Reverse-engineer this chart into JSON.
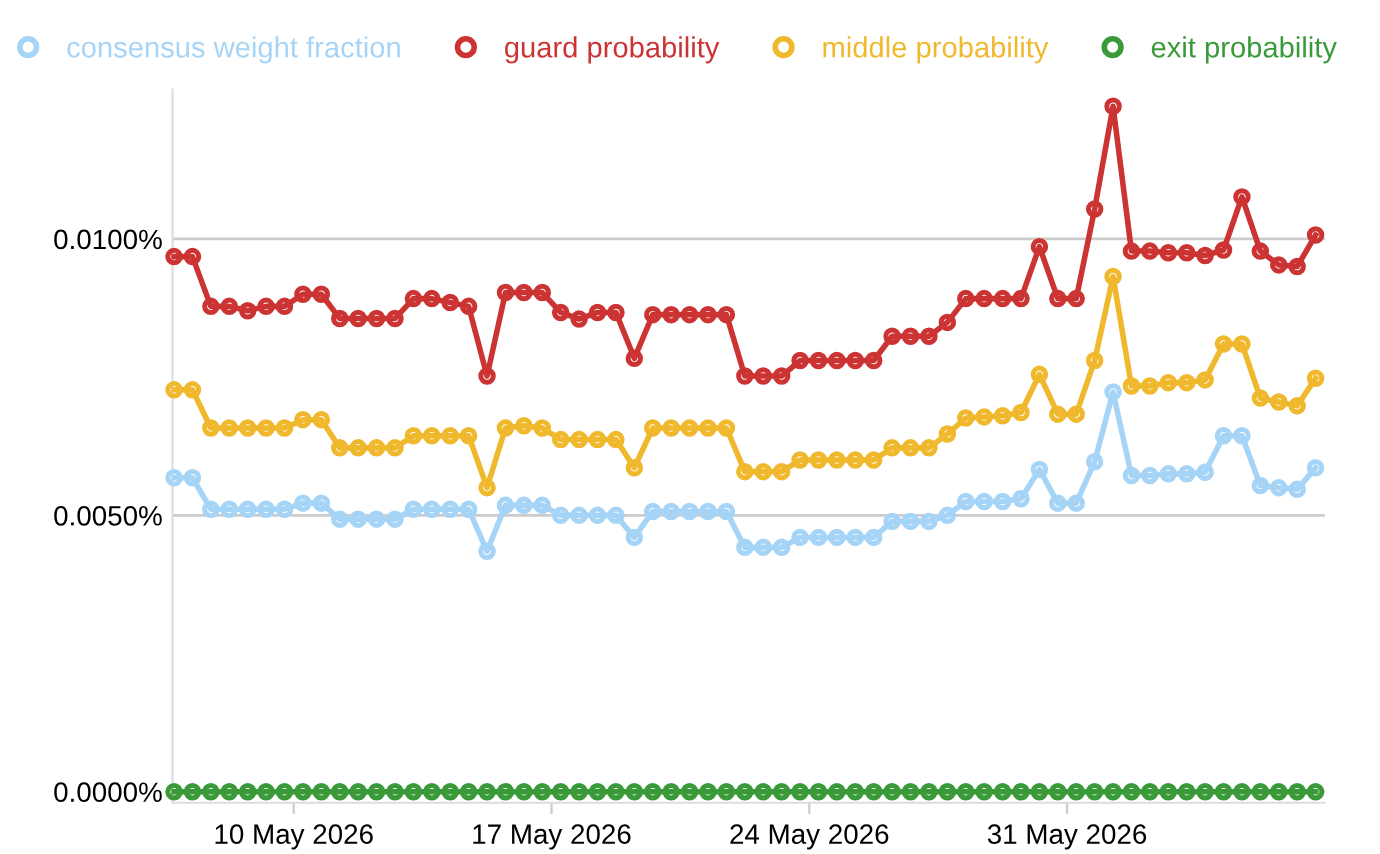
{
  "chart_data": {
    "type": "line",
    "marker": "circle",
    "line_style": "solid",
    "grid": "y",
    "legend": "top",
    "xlim": [
      "2026-05-06T17:00",
      "2026-06-07T00:00"
    ],
    "xticks": [
      {
        "value": "2026-05-10",
        "label": "10 May 2026"
      },
      {
        "value": "2026-05-17",
        "label": "17 May 2026"
      },
      {
        "value": "2026-05-24",
        "label": "24 May 2026"
      },
      {
        "value": "2026-05-31",
        "label": "31 May 2026"
      }
    ],
    "ylim": [
      -0.0002,
      0.0127
    ],
    "yticks": [
      {
        "value": 0,
        "label": "0.0000%"
      },
      {
        "value": 0.005,
        "label": "0.0050%"
      },
      {
        "value": 0.01,
        "label": "0.0100%"
      }
    ],
    "x": [
      "2026-05-06T18:00",
      "2026-05-07T06:00",
      "2026-05-07T18:00",
      "2026-05-08T06:00",
      "2026-05-08T18:00",
      "2026-05-09T06:00",
      "2026-05-09T18:00",
      "2026-05-10T06:00",
      "2026-05-10T18:00",
      "2026-05-11T06:00",
      "2026-05-11T18:00",
      "2026-05-12T06:00",
      "2026-05-12T18:00",
      "2026-05-13T06:00",
      "2026-05-13T18:00",
      "2026-05-14T06:00",
      "2026-05-14T18:00",
      "2026-05-15T06:00",
      "2026-05-15T18:00",
      "2026-05-16T06:00",
      "2026-05-16T18:00",
      "2026-05-17T06:00",
      "2026-05-17T18:00",
      "2026-05-18T06:00",
      "2026-05-18T18:00",
      "2026-05-19T06:00",
      "2026-05-19T18:00",
      "2026-05-20T06:00",
      "2026-05-20T18:00",
      "2026-05-21T06:00",
      "2026-05-21T18:00",
      "2026-05-22T06:00",
      "2026-05-22T18:00",
      "2026-05-23T06:00",
      "2026-05-23T18:00",
      "2026-05-24T06:00",
      "2026-05-24T18:00",
      "2026-05-25T06:00",
      "2026-05-25T18:00",
      "2026-05-26T06:00",
      "2026-05-26T18:00",
      "2026-05-27T06:00",
      "2026-05-27T18:00",
      "2026-05-28T06:00",
      "2026-05-28T18:00",
      "2026-05-29T06:00",
      "2026-05-29T18:00",
      "2026-05-30T06:00",
      "2026-05-30T18:00",
      "2026-05-31T06:00",
      "2026-05-31T18:00",
      "2026-06-01T06:00",
      "2026-06-01T18:00",
      "2026-06-02T06:00",
      "2026-06-02T18:00",
      "2026-06-03T06:00",
      "2026-06-03T18:00",
      "2026-06-04T06:00",
      "2026-06-04T18:00",
      "2026-06-05T06:00",
      "2026-06-05T18:00",
      "2026-06-06T06:00",
      "2026-06-06T18:00"
    ],
    "series": [
      {
        "name": "consensus weight fraction",
        "color": "#a6d4f7",
        "values": [
          0.00568,
          0.00568,
          0.00511,
          0.00511,
          0.00511,
          0.00511,
          0.00511,
          0.00522,
          0.00522,
          0.00493,
          0.00493,
          0.00493,
          0.00493,
          0.00511,
          0.00511,
          0.00511,
          0.00511,
          0.00435,
          0.00518,
          0.00518,
          0.00518,
          0.005,
          0.005,
          0.005,
          0.005,
          0.0046,
          0.00507,
          0.00507,
          0.00507,
          0.00507,
          0.00507,
          0.00442,
          0.00442,
          0.00442,
          0.0046,
          0.0046,
          0.0046,
          0.0046,
          0.0046,
          0.00489,
          0.00489,
          0.00489,
          0.005,
          0.00525,
          0.00525,
          0.00525,
          0.0053,
          0.00583,
          0.00522,
          0.00522,
          0.00597,
          0.00723,
          0.00572,
          0.00572,
          0.00575,
          0.00575,
          0.00578,
          0.00644,
          0.00644,
          0.00554,
          0.0055,
          0.00547,
          0.00586
        ]
      },
      {
        "name": "guard probability",
        "color": "#cc3333",
        "values": [
          0.00968,
          0.00968,
          0.00878,
          0.00878,
          0.0087,
          0.00878,
          0.00878,
          0.009,
          0.009,
          0.00856,
          0.00856,
          0.00856,
          0.00856,
          0.00892,
          0.00892,
          0.00885,
          0.00878,
          0.00752,
          0.00903,
          0.00903,
          0.00903,
          0.00867,
          0.00855,
          0.00867,
          0.00867,
          0.00784,
          0.00863,
          0.00863,
          0.00863,
          0.00863,
          0.00863,
          0.00752,
          0.00752,
          0.00752,
          0.0078,
          0.0078,
          0.0078,
          0.0078,
          0.0078,
          0.00824,
          0.00824,
          0.00824,
          0.00849,
          0.00892,
          0.00892,
          0.00892,
          0.00892,
          0.00986,
          0.00892,
          0.00892,
          0.01054,
          0.0124,
          0.00978,
          0.00978,
          0.00975,
          0.00975,
          0.0097,
          0.0098,
          0.01076,
          0.00978,
          0.00953,
          0.0095,
          0.01007
        ]
      },
      {
        "name": "middle probability",
        "color": "#efb82d",
        "values": [
          0.00727,
          0.00727,
          0.00658,
          0.00658,
          0.00658,
          0.00658,
          0.00658,
          0.00673,
          0.00673,
          0.00622,
          0.00622,
          0.00622,
          0.00622,
          0.00644,
          0.00644,
          0.00644,
          0.00644,
          0.0055,
          0.00658,
          0.00662,
          0.00658,
          0.00637,
          0.00637,
          0.00637,
          0.00637,
          0.00586,
          0.00658,
          0.00658,
          0.00658,
          0.00658,
          0.00658,
          0.00579,
          0.00579,
          0.00579,
          0.006,
          0.006,
          0.006,
          0.006,
          0.006,
          0.00622,
          0.00622,
          0.00622,
          0.00647,
          0.00676,
          0.00678,
          0.0068,
          0.00686,
          0.00755,
          0.00683,
          0.00683,
          0.0078,
          0.00932,
          0.00734,
          0.00734,
          0.0074,
          0.0074,
          0.00745,
          0.0081,
          0.0081,
          0.00712,
          0.00705,
          0.00698,
          0.00748
        ]
      },
      {
        "name": "exit probability",
        "color": "#3a9a3a",
        "values": [
          0,
          0,
          0,
          0,
          0,
          0,
          0,
          0,
          0,
          0,
          0,
          0,
          0,
          0,
          0,
          0,
          0,
          0,
          0,
          0,
          0,
          0,
          0,
          0,
          0,
          0,
          0,
          0,
          0,
          0,
          0,
          0,
          0,
          0,
          0,
          0,
          0,
          0,
          0,
          0,
          0,
          0,
          0,
          0,
          0,
          0,
          0,
          0,
          0,
          0,
          0,
          0,
          0,
          0,
          0,
          0,
          0,
          0,
          0,
          0,
          0,
          0,
          0
        ]
      }
    ]
  }
}
